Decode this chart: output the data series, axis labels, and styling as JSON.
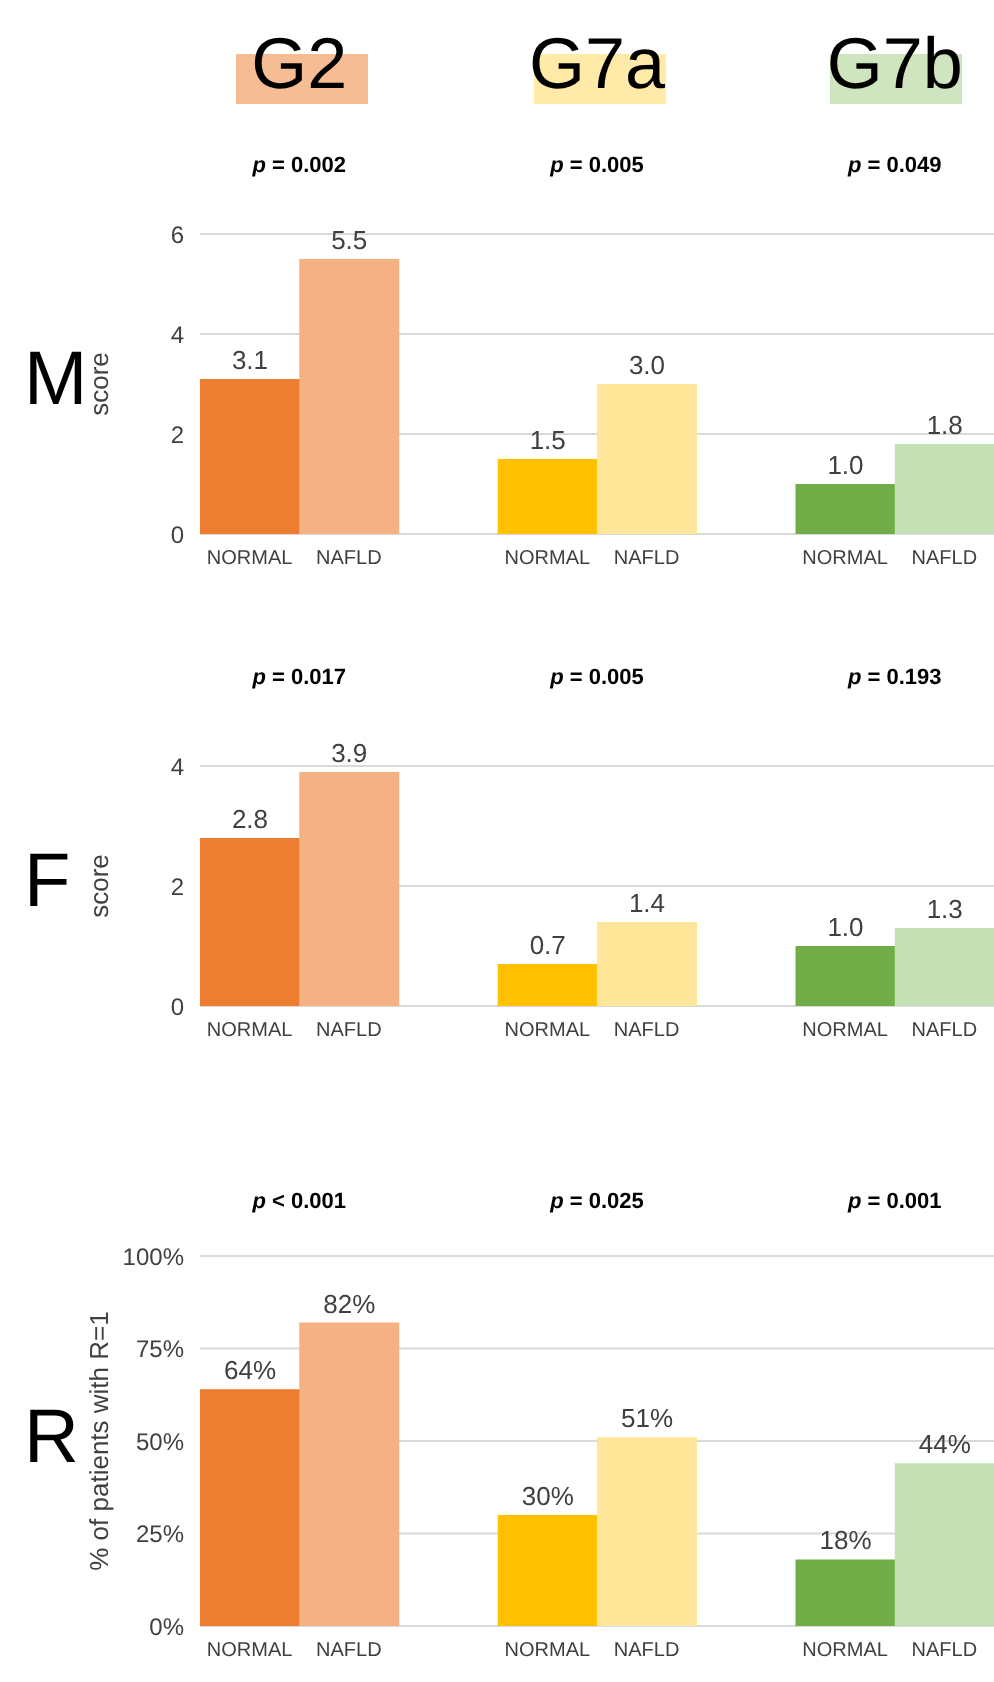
{
  "chart_data": [
    {
      "type": "bar",
      "title": "M",
      "ylabel": "score",
      "categories": [
        "NORMAL",
        "NAFLD",
        "NORMAL",
        "NAFLD",
        "NORMAL",
        "NAFLD"
      ],
      "values": [
        3.1,
        5.5,
        1.5,
        3.0,
        1.0,
        1.8
      ],
      "value_labels": [
        "3.1",
        "5.5",
        "1.5",
        "3.0",
        "1.0",
        "1.8"
      ],
      "colors": [
        "#ed7d31",
        "#f4b183",
        "#ffc000",
        "#ffe699",
        "#70ad47",
        "#c5e0b4"
      ],
      "ylim": [
        0,
        6
      ],
      "yticks": [
        0,
        2,
        4,
        6
      ],
      "grid": "y",
      "annotations": [
        "G2",
        "G7a",
        "G7b",
        "p = 0.002",
        "p = 0.005",
        "p = 0.049"
      ]
    },
    {
      "type": "bar",
      "title": "F",
      "ylabel": "score",
      "categories": [
        "NORMAL",
        "NAFLD",
        "NORMAL",
        "NAFLD",
        "NORMAL",
        "NAFLD"
      ],
      "values": [
        2.8,
        3.9,
        0.7,
        1.4,
        1.0,
        1.3
      ],
      "value_labels": [
        "2.8",
        "3.9",
        "0.7",
        "1.4",
        "1.0",
        "1.3"
      ],
      "colors": [
        "#ed7d31",
        "#f4b183",
        "#ffc000",
        "#ffe699",
        "#70ad47",
        "#c5e0b4"
      ],
      "ylim": [
        0,
        4
      ],
      "yticks": [
        0,
        2,
        4
      ],
      "grid": "y",
      "annotations": [
        "p = 0.017",
        "p = 0.005",
        "p = 0.193"
      ]
    },
    {
      "type": "bar",
      "title": "R",
      "ylabel": "% of patients with R=1",
      "categories": [
        "NORMAL",
        "NAFLD",
        "NORMAL",
        "NAFLD",
        "NORMAL",
        "NAFLD"
      ],
      "values": [
        64,
        82,
        30,
        51,
        18,
        44
      ],
      "value_labels": [
        "64%",
        "82%",
        "30%",
        "51%",
        "18%",
        "44%"
      ],
      "colors": [
        "#ed7d31",
        "#f4b183",
        "#ffc000",
        "#ffe699",
        "#70ad47",
        "#c5e0b4"
      ],
      "ylim": [
        0,
        100
      ],
      "yticks": [
        {
          "value": 0,
          "label": "0%"
        },
        {
          "value": 25,
          "label": "25%"
        },
        {
          "value": 50,
          "label": "50%"
        },
        {
          "value": 75,
          "label": "75%"
        },
        {
          "value": 100,
          "label": "100%"
        }
      ],
      "grid": "y",
      "annotations": [
        "p < 0.001",
        "p = 0.025",
        "p = 0.001"
      ]
    }
  ]
}
